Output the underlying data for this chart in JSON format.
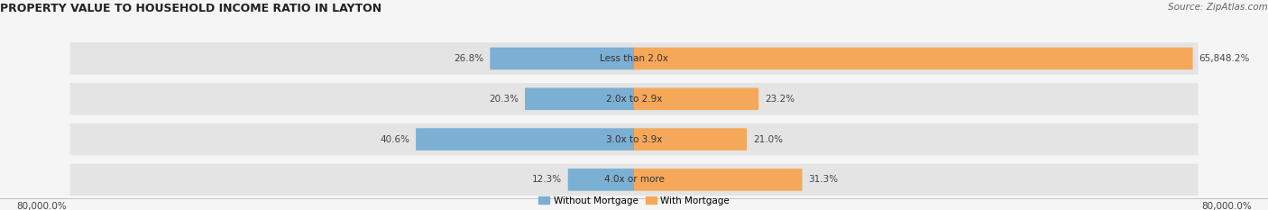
{
  "title": "PROPERTY VALUE TO HOUSEHOLD INCOME RATIO IN LAYTON",
  "source": "Source: ZipAtlas.com",
  "categories": [
    "Less than 2.0x",
    "2.0x to 2.9x",
    "3.0x to 3.9x",
    "4.0x or more"
  ],
  "without_mortgage": [
    26.8,
    20.3,
    40.6,
    12.3
  ],
  "with_mortgage": [
    65848.2,
    23.2,
    21.0,
    31.3
  ],
  "with_mortgage_display": [
    "65,848.2%",
    "23.2%",
    "21.0%",
    "31.3%"
  ],
  "without_mortgage_display": [
    "26.8%",
    "20.3%",
    "40.6%",
    "12.3%"
  ],
  "color_without": "#7BAFD4",
  "color_with": "#F5A85A",
  "bar_bg_color": "#e4e4e4",
  "fig_bg_color": "#f5f5f5",
  "xlabel_left": "80,000.0%",
  "xlabel_right": "80,000.0%",
  "max_val": 80000,
  "title_fontsize": 9,
  "label_fontsize": 7.5,
  "source_fontsize": 7.5
}
